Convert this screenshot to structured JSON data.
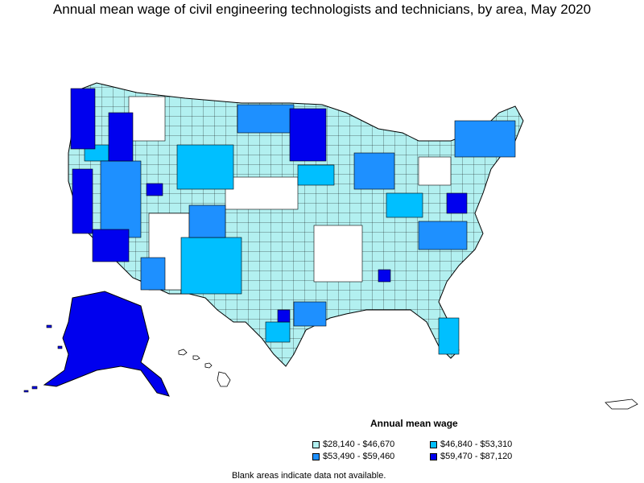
{
  "title": "Annual mean wage of civil engineering technologists and technicians, by area, May 2020",
  "legend": {
    "heading": "Annual mean wage",
    "items": [
      {
        "label": "$28,140 - $46,670",
        "color": "#b2f0f0"
      },
      {
        "label": "$46,840 - $53,310",
        "color": "#00bfff"
      },
      {
        "label": "$53,490 - $59,460",
        "color": "#1e90ff"
      },
      {
        "label": "$59,470 - $87,120",
        "color": "#0000ee"
      }
    ]
  },
  "note": "Blank areas indicate data not available.",
  "colors": {
    "tier1": "#b2f0f0",
    "tier2": "#00bfff",
    "tier3": "#1e90ff",
    "tier4": "#0000ee",
    "no_data": "#ffffff",
    "border": "#000000"
  }
}
